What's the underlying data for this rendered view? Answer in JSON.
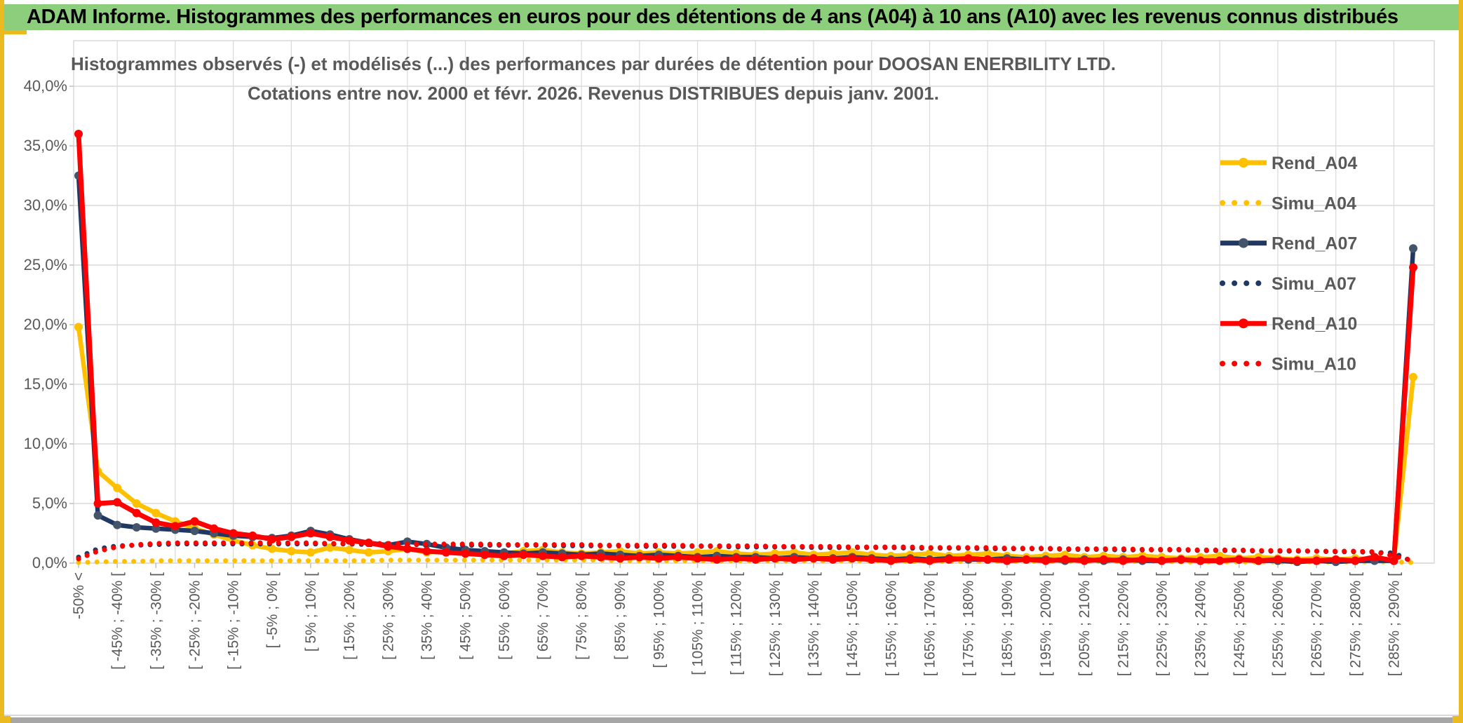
{
  "header": {
    "title": "ADAM Informe. Histogrammes des performances en euros pour des détentions de 4 ans (A04) à 10 ans (A10) avec les revenus connus distribués"
  },
  "chart": {
    "title_line1": "Histogrammes observés (-) et modélisés (...) des performances par durées de détention pour DOOSAN ENERBILITY LTD.",
    "title_line2": "Cotations entre nov. 2000 et févr. 2026. Revenus DISTRIBUES depuis janv. 2001."
  },
  "colors": {
    "header_green": "#8DCE7D",
    "accent_gold": "#EABA20",
    "axis_text_gray": "#595959",
    "gridline_gray": "#D9D9D9",
    "series_gold": "#FFC000",
    "series_navy": "#1F3864",
    "series_navy_marker": "#44546A",
    "series_red": "#FF0000"
  },
  "chart_data": {
    "type": "line",
    "title": "Histogrammes observés (-) et modélisés (...) des performances par durées de détention pour DOOSAN ENERBILITY LTD. Cotations entre nov. 2000 et févr. 2026. Revenus DISTRIBUES depuis janv. 2001.",
    "xlabel": "",
    "ylabel": "",
    "ylim": [
      0,
      40
    ],
    "ytick_labels": [
      "40,0%",
      "35,0%",
      "30,0%",
      "25,0%",
      "20,0%",
      "15,0%",
      "10,0%",
      "5,0%",
      "0,0%"
    ],
    "grid": true,
    "legend_position": "right-top",
    "bin_width_pct": 5,
    "categories": [
      "-50% <",
      "",
      "[ -45% ; -40% [",
      "",
      "[ -35% ; -30% [",
      "",
      "[ -25% ; -20% [",
      "",
      "[ -15% ; -10% [",
      "",
      "[ -5% ; 0% [",
      "",
      "[ 5% ; 10% [",
      "",
      "[ 15% ; 20% [",
      "",
      "[ 25% ; 30% [",
      "",
      "[ 35% ; 40% [",
      "",
      "[ 45% ; 50% [",
      "",
      "[ 55% ; 60% [",
      "",
      "[ 65% ; 70% [",
      "",
      "[ 75% ; 80% [",
      "",
      "[ 85% ; 90% [",
      "",
      "[ 95% ; 100% [",
      "",
      "[ 105% ; 110% [",
      "",
      "[ 115% ; 120% [",
      "",
      "[ 125% ; 130% [",
      "",
      "[ 135% ; 140% [",
      "",
      "[ 145% ; 150% [",
      "",
      "[ 155% ; 160% [",
      "",
      "[ 165% ; 170% [",
      "",
      "[ 175% ; 180% [",
      "",
      "[ 185% ; 190% [",
      "",
      "[ 195% ; 200% [",
      "",
      "[ 205% ; 210% [",
      "",
      "[ 215% ; 220% [",
      "",
      "[ 225% ; 230% [",
      "",
      "[ 235% ; 240% [",
      "",
      "[ 245% ; 250% [",
      "",
      "[ 255% ; 260% [",
      "",
      "[ 265% ; 270% [",
      "",
      "[ 275% ; 280% [",
      "",
      "[ 285% ; 290% [",
      ""
    ],
    "series": [
      {
        "name": "Rend_A04",
        "style": "solid",
        "color": "#FFC000",
        "marker_color": "#FFC000",
        "width": 6.5,
        "values": [
          19.8,
          7.7,
          6.3,
          5.0,
          4.2,
          3.5,
          2.9,
          2.4,
          1.9,
          1.5,
          1.2,
          1.0,
          0.9,
          1.3,
          1.1,
          0.9,
          1.0,
          1.2,
          0.9,
          1.0,
          1.1,
          0.9,
          0.8,
          1.0,
          1.1,
          0.9,
          0.8,
          0.9,
          1.0,
          0.8,
          0.9,
          0.8,
          0.9,
          1.0,
          0.8,
          0.7,
          0.8,
          0.9,
          0.7,
          0.8,
          0.9,
          0.7,
          0.6,
          0.7,
          0.8,
          0.6,
          0.7,
          0.8,
          0.6,
          0.5,
          0.6,
          0.7,
          0.5,
          0.6,
          0.5,
          0.6,
          0.5,
          0.4,
          0.5,
          0.6,
          0.4,
          0.5,
          0.4,
          0.3,
          0.4,
          0.3,
          0.4,
          0.3,
          0.2,
          15.6
        ]
      },
      {
        "name": "Simu_A04",
        "style": "dotted",
        "color": "#FFC000",
        "width": 7,
        "values": [
          0.05,
          0.1,
          0.15,
          0.15,
          0.2,
          0.2,
          0.2,
          0.2,
          0.2,
          0.2,
          0.2,
          0.2,
          0.2,
          0.2,
          0.2,
          0.2,
          0.25,
          0.25,
          0.25,
          0.25,
          0.25,
          0.25,
          0.25,
          0.25,
          0.25,
          0.25,
          0.25,
          0.25,
          0.2,
          0.2,
          0.2,
          0.2,
          0.2,
          0.2,
          0.2,
          0.2,
          0.2,
          0.2,
          0.2,
          0.2,
          0.2,
          0.2,
          0.2,
          0.15,
          0.15,
          0.15,
          0.15,
          0.15,
          0.15,
          0.15,
          0.15,
          0.15,
          0.15,
          0.15,
          0.15,
          0.15,
          0.15,
          0.1,
          0.1,
          0.1,
          0.1,
          0.1,
          0.1,
          0.1,
          0.1,
          0.1,
          0.1,
          0.1,
          0.1,
          0.05
        ]
      },
      {
        "name": "Rend_A07",
        "style": "solid",
        "color": "#1F3864",
        "marker_color": "#44546A",
        "width": 6.5,
        "values": [
          32.5,
          4.0,
          3.2,
          3.0,
          2.9,
          2.8,
          2.7,
          2.5,
          2.3,
          2.2,
          2.1,
          2.3,
          2.7,
          2.4,
          2.0,
          1.7,
          1.5,
          1.8,
          1.6,
          1.3,
          1.1,
          1.0,
          0.9,
          0.8,
          0.9,
          0.8,
          0.7,
          0.8,
          0.7,
          0.6,
          0.7,
          0.6,
          0.5,
          0.6,
          0.5,
          0.5,
          0.4,
          0.5,
          0.4,
          0.4,
          0.5,
          0.4,
          0.3,
          0.4,
          0.3,
          0.4,
          0.3,
          0.3,
          0.4,
          0.3,
          0.3,
          0.2,
          0.3,
          0.2,
          0.3,
          0.2,
          0.2,
          0.3,
          0.2,
          0.2,
          0.3,
          0.2,
          0.2,
          0.1,
          0.2,
          0.1,
          0.2,
          0.2,
          0.2,
          26.4
        ]
      },
      {
        "name": "Simu_A07",
        "style": "dotted",
        "color": "#1F3864",
        "width": 7,
        "values": [
          0.5,
          1.2,
          1.45,
          1.5,
          1.55,
          1.6,
          1.6,
          1.6,
          1.6,
          1.6,
          1.6,
          1.6,
          1.6,
          1.6,
          1.6,
          1.55,
          1.55,
          1.55,
          1.55,
          1.5,
          1.5,
          1.5,
          1.5,
          1.5,
          1.5,
          1.45,
          1.45,
          1.45,
          1.45,
          1.4,
          1.4,
          1.4,
          1.4,
          1.4,
          1.35,
          1.35,
          1.35,
          1.35,
          1.3,
          1.3,
          1.3,
          1.3,
          1.3,
          1.25,
          1.25,
          1.25,
          1.25,
          1.2,
          1.2,
          1.2,
          1.2,
          1.15,
          1.15,
          1.15,
          1.1,
          1.1,
          1.1,
          1.1,
          1.05,
          1.05,
          1.05,
          1.0,
          1.0,
          1.0,
          1.0,
          0.95,
          0.95,
          0.9,
          0.85,
          0.1
        ]
      },
      {
        "name": "Rend_A10",
        "style": "solid",
        "color": "#FF0000",
        "marker_color": "#FF0000",
        "width": 7,
        "values": [
          36.0,
          5.0,
          5.1,
          4.2,
          3.4,
          3.1,
          3.5,
          2.9,
          2.5,
          2.3,
          2.0,
          2.2,
          2.5,
          2.2,
          1.9,
          1.7,
          1.4,
          1.2,
          1.0,
          0.9,
          0.8,
          0.7,
          0.6,
          0.7,
          0.6,
          0.5,
          0.6,
          0.5,
          0.4,
          0.5,
          0.4,
          0.5,
          0.4,
          0.3,
          0.4,
          0.3,
          0.4,
          0.3,
          0.4,
          0.3,
          0.4,
          0.3,
          0.2,
          0.3,
          0.2,
          0.3,
          0.4,
          0.3,
          0.2,
          0.3,
          0.2,
          0.3,
          0.2,
          0.3,
          0.2,
          0.3,
          0.2,
          0.3,
          0.2,
          0.2,
          0.3,
          0.2,
          0.3,
          0.2,
          0.2,
          0.3,
          0.2,
          0.5,
          0.2,
          24.8
        ]
      },
      {
        "name": "Simu_A10",
        "style": "dotted",
        "color": "#FF0000",
        "width": 7,
        "values": [
          0.35,
          1.0,
          1.35,
          1.55,
          1.65,
          1.7,
          1.7,
          1.7,
          1.7,
          1.7,
          1.7,
          1.7,
          1.7,
          1.65,
          1.65,
          1.65,
          1.65,
          1.6,
          1.6,
          1.6,
          1.6,
          1.6,
          1.55,
          1.55,
          1.55,
          1.55,
          1.55,
          1.5,
          1.5,
          1.5,
          1.5,
          1.5,
          1.45,
          1.45,
          1.45,
          1.45,
          1.4,
          1.4,
          1.4,
          1.4,
          1.35,
          1.35,
          1.35,
          1.35,
          1.3,
          1.3,
          1.3,
          1.3,
          1.25,
          1.25,
          1.25,
          1.2,
          1.2,
          1.2,
          1.2,
          1.15,
          1.15,
          1.15,
          1.1,
          1.1,
          1.1,
          1.05,
          1.05,
          1.05,
          1.0,
          1.0,
          1.0,
          0.95,
          0.6,
          0.2
        ]
      }
    ]
  }
}
